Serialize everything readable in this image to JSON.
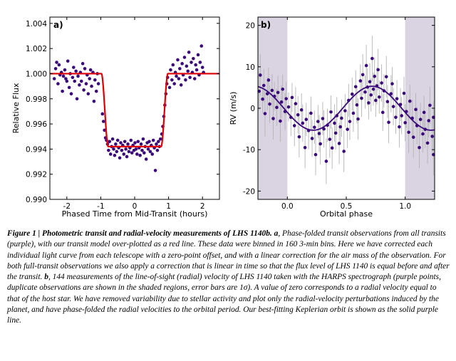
{
  "chart_data": [
    {
      "type": "scatter",
      "panel_label": "a)",
      "xlabel": "Phased Time from Mid-Transit (hours)",
      "ylabel": "Relative Flux",
      "xlim": [
        -2.5,
        2.5
      ],
      "ylim": [
        0.99,
        1.0045
      ],
      "xticks": [
        "-2",
        "-1",
        "0",
        "1",
        "2"
      ],
      "yticks": [
        "0.990",
        "0.992",
        "0.994",
        "0.996",
        "0.998",
        "1.000",
        "1.002",
        "1.004"
      ],
      "point_color": "#3b0a7a",
      "model_color": "#dd0000",
      "model": {
        "baseline": 1.0,
        "depth_flux": 0.9942,
        "ingress_start": -0.98,
        "full_start": -0.78,
        "full_end": 0.78,
        "egress_end": 0.98
      },
      "points": [
        [
          -2.37,
          0.9996
        ],
        [
          -2.33,
          1.0004
        ],
        [
          -2.3,
          1.0009
        ],
        [
          -2.26,
          0.9992
        ],
        [
          -2.23,
          1.0007
        ],
        [
          -2.2,
          0.9999
        ],
        [
          -2.16,
          1.0001
        ],
        [
          -2.13,
          0.9986
        ],
        [
          -2.1,
          0.9998
        ],
        [
          -2.06,
          1.0003
        ],
        [
          -2.03,
          0.9996
        ],
        [
          -2.0,
          0.9994
        ],
        [
          -1.97,
          1.001
        ],
        [
          -1.93,
          0.9989
        ],
        [
          -1.9,
          1.0
        ],
        [
          -1.87,
          0.9984
        ],
        [
          -1.83,
          0.9997
        ],
        [
          -1.8,
          1.0005
        ],
        [
          -1.77,
          0.9994
        ],
        [
          -1.73,
          1.0002
        ],
        [
          -1.7,
          0.998
        ],
        [
          -1.67,
          0.9998
        ],
        [
          -1.63,
          0.9991
        ],
        [
          -1.6,
          1.0001
        ],
        [
          -1.57,
          0.9994
        ],
        [
          -1.53,
          1.0008
        ],
        [
          -1.5,
          0.9987
        ],
        [
          -1.47,
          1.0004
        ],
        [
          -1.43,
          0.9992
        ],
        [
          -1.4,
          0.9999
        ],
        [
          -1.37,
          0.9984
        ],
        [
          -1.33,
          0.9996
        ],
        [
          -1.3,
          1.0003
        ],
        [
          -1.27,
          0.999
        ],
        [
          -1.23,
          1.0001
        ],
        [
          -1.2,
          0.9978
        ],
        [
          -1.17,
          0.9995
        ],
        [
          -1.13,
          0.9986
        ],
        [
          -1.1,
          1.0
        ],
        [
          -1.07,
          0.9992
        ],
        [
          -0.95,
          0.9968
        ],
        [
          -0.92,
          0.9962
        ],
        [
          -0.89,
          0.9955
        ],
        [
          -0.86,
          0.9949
        ],
        [
          -0.83,
          0.9947
        ],
        [
          -0.8,
          0.9944
        ],
        [
          -0.77,
          0.9939
        ],
        [
          -0.74,
          0.9946
        ],
        [
          -0.71,
          0.9936
        ],
        [
          -0.68,
          0.9942
        ],
        [
          -0.65,
          0.9948
        ],
        [
          -0.62,
          0.994
        ],
        [
          -0.59,
          0.9935
        ],
        [
          -0.56,
          0.9944
        ],
        [
          -0.53,
          0.9938
        ],
        [
          -0.5,
          0.9947
        ],
        [
          -0.47,
          0.9941
        ],
        [
          -0.44,
          0.9933
        ],
        [
          -0.41,
          0.9945
        ],
        [
          -0.38,
          0.9939
        ],
        [
          -0.35,
          0.9943
        ],
        [
          -0.32,
          0.9936
        ],
        [
          -0.29,
          0.9946
        ],
        [
          -0.26,
          0.994
        ],
        [
          -0.23,
          0.9934
        ],
        [
          -0.2,
          0.9944
        ],
        [
          -0.17,
          0.9938
        ],
        [
          -0.14,
          0.9941
        ],
        [
          -0.11,
          0.9947
        ],
        [
          -0.08,
          0.9937
        ],
        [
          -0.05,
          0.9943
        ],
        [
          -0.02,
          0.9939
        ],
        [
          0.01,
          0.9945
        ],
        [
          0.04,
          0.994
        ],
        [
          0.07,
          0.9936
        ],
        [
          0.1,
          0.9946
        ],
        [
          0.13,
          0.9941
        ],
        [
          0.16,
          0.9935
        ],
        [
          0.19,
          0.9944
        ],
        [
          0.22,
          0.9939
        ],
        [
          0.25,
          0.9948
        ],
        [
          0.28,
          0.9937
        ],
        [
          0.31,
          0.9942
        ],
        [
          0.34,
          0.9932
        ],
        [
          0.37,
          0.9945
        ],
        [
          0.4,
          0.994
        ],
        [
          0.43,
          0.9946
        ],
        [
          0.46,
          0.9938
        ],
        [
          0.49,
          0.9943
        ],
        [
          0.52,
          0.9936
        ],
        [
          0.55,
          0.9947
        ],
        [
          0.58,
          0.9941
        ],
        [
          0.61,
          0.9923
        ],
        [
          0.64,
          0.9944
        ],
        [
          0.67,
          0.9939
        ],
        [
          0.7,
          0.9946
        ],
        [
          0.73,
          0.9942
        ],
        [
          0.76,
          0.9948
        ],
        [
          0.8,
          0.9952
        ],
        [
          0.83,
          0.9958
        ],
        [
          0.86,
          0.9966
        ],
        [
          0.89,
          0.9975
        ],
        [
          0.92,
          0.9984
        ],
        [
          0.95,
          0.9992
        ],
        [
          0.97,
          0.9997
        ],
        [
          1.03,
          0.9989
        ],
        [
          1.06,
          1.0003
        ],
        [
          1.1,
          0.9995
        ],
        [
          1.13,
          1.0007
        ],
        [
          1.17,
          0.9992
        ],
        [
          1.2,
          1.0001
        ],
        [
          1.23,
          0.9998
        ],
        [
          1.27,
          1.0011
        ],
        [
          1.3,
          0.9996
        ],
        [
          1.33,
          1.0004
        ],
        [
          1.37,
          0.9991
        ],
        [
          1.4,
          1.0008
        ],
        [
          1.43,
          0.9999
        ],
        [
          1.47,
          1.0013
        ],
        [
          1.5,
          0.9995
        ],
        [
          1.53,
          1.0006
        ],
        [
          1.57,
          1.0002
        ],
        [
          1.6,
          1.0017
        ],
        [
          1.63,
          0.9997
        ],
        [
          1.67,
          1.0009
        ],
        [
          1.7,
          1.0001
        ],
        [
          1.73,
          1.0012
        ],
        [
          1.77,
          0.9996
        ],
        [
          1.8,
          1.0007
        ],
        [
          1.83,
          1.0003
        ],
        [
          1.87,
          1.0015
        ],
        [
          1.9,
          0.9999
        ],
        [
          1.93,
          1.0009
        ],
        [
          1.97,
          1.0022
        ],
        [
          2.0,
          1.0005
        ],
        [
          2.03,
          1.0001
        ]
      ]
    },
    {
      "type": "scatter",
      "panel_label": "b)",
      "xlabel": "Orbital phase",
      "ylabel": "RV (m/s)",
      "xlim": [
        -0.25,
        1.25
      ],
      "ylim": [
        -22,
        22
      ],
      "xticks": [
        "0.0",
        "0.5",
        "1.0"
      ],
      "yticks": [
        "20",
        "10",
        "0",
        "-10",
        "-20"
      ],
      "shaded_regions": [
        [
          -0.25,
          0.0
        ],
        [
          1.0,
          1.25
        ]
      ],
      "shade_color": "#d9d3e2",
      "point_color": "#3b0a7a",
      "errorbar_color": "#b4b4b4",
      "model": {
        "type": "sinusoid",
        "amplitude": 5.3,
        "phase_of_max": 0.72,
        "color": "#3b0a7a"
      },
      "points": [
        [
          -0.24,
          4.1,
          4.5
        ],
        [
          -0.23,
          8.0,
          5.0
        ],
        [
          -0.21,
          2.2,
          3.5
        ],
        [
          -0.2,
          5.5,
          4.0
        ],
        [
          -0.19,
          -1.3,
          5.5
        ],
        [
          -0.17,
          3.5,
          4.0
        ],
        [
          -0.16,
          6.8,
          3.0
        ],
        [
          -0.15,
          1.0,
          4.5
        ],
        [
          -0.13,
          4.3,
          4.0
        ],
        [
          -0.12,
          -2.5,
          5.0
        ],
        [
          -0.11,
          2.9,
          3.5
        ],
        [
          -0.09,
          0.2,
          4.5
        ],
        [
          -0.08,
          3.8,
          4.0
        ],
        [
          -0.06,
          -3.1,
          5.0
        ],
        [
          -0.05,
          1.5,
          4.0
        ],
        [
          -0.04,
          4.6,
          3.5
        ],
        [
          -0.02,
          -0.8,
          4.5
        ],
        [
          -0.01,
          2.3,
          4.0
        ],
        [
          0.01,
          0.3,
          3.5
        ],
        [
          0.03,
          -2.2,
          4.5
        ],
        [
          0.04,
          2.6,
          3.5
        ],
        [
          0.06,
          -4.2,
          5.0
        ],
        [
          0.07,
          1.1,
          4.0
        ],
        [
          0.09,
          -1.6,
          4.5
        ],
        [
          0.1,
          -6.9,
          5.0
        ],
        [
          0.12,
          -0.4,
          4.0
        ],
        [
          0.13,
          -3.6,
          4.5
        ],
        [
          0.15,
          -9.5,
          5.0
        ],
        [
          0.16,
          -2.7,
          4.0
        ],
        [
          0.18,
          -5.4,
          4.5
        ],
        [
          0.2,
          -1.2,
          4.0
        ],
        [
          0.21,
          -7.3,
          4.5
        ],
        [
          0.23,
          -4.6,
          4.0
        ],
        [
          0.24,
          -11.2,
          5.0
        ],
        [
          0.26,
          -3.2,
          4.0
        ],
        [
          0.27,
          -6.1,
          4.5
        ],
        [
          0.28,
          -8.6,
          5.0
        ],
        [
          0.3,
          -2.5,
          4.0
        ],
        [
          0.31,
          -5.0,
          4.5
        ],
        [
          0.33,
          -12.8,
          5.5
        ],
        [
          0.34,
          -4.1,
          4.0
        ],
        [
          0.36,
          -7.5,
          4.5
        ],
        [
          0.37,
          -0.9,
          4.0
        ],
        [
          0.38,
          -9.6,
          5.0
        ],
        [
          0.4,
          -3.6,
          4.5
        ],
        [
          0.41,
          -6.0,
          4.0
        ],
        [
          0.42,
          -1.8,
          4.5
        ],
        [
          0.44,
          -8.5,
          5.0
        ],
        [
          0.45,
          -4.5,
          4.0
        ],
        [
          0.46,
          -2.4,
          4.5
        ],
        [
          0.48,
          -10.4,
          5.0
        ],
        [
          0.49,
          -0.6,
          4.0
        ],
        [
          0.51,
          -5.1,
          4.5
        ],
        [
          0.52,
          1.9,
          4.0
        ],
        [
          0.53,
          -3.2,
          4.5
        ],
        [
          0.55,
          3.4,
          4.0
        ],
        [
          0.56,
          -1.2,
          4.5
        ],
        [
          0.58,
          5.2,
          4.0
        ],
        [
          0.59,
          0.8,
          4.5
        ],
        [
          0.6,
          -2.6,
          5.0
        ],
        [
          0.62,
          6.6,
          4.0
        ],
        [
          0.63,
          2.4,
          4.5
        ],
        [
          0.64,
          8.1,
          5.0
        ],
        [
          0.66,
          3.9,
          4.0
        ],
        [
          0.67,
          10.3,
          5.0
        ],
        [
          0.68,
          5.1,
          4.5
        ],
        [
          0.69,
          1.3,
          4.0
        ],
        [
          0.7,
          6.4,
          4.5
        ],
        [
          0.71,
          3.2,
          4.0
        ],
        [
          0.72,
          12.0,
          5.5
        ],
        [
          0.73,
          4.6,
          4.0
        ],
        [
          0.74,
          7.7,
          4.5
        ],
        [
          0.75,
          1.9,
          4.0
        ],
        [
          0.76,
          5.4,
          4.5
        ],
        [
          0.77,
          9.3,
          5.0
        ],
        [
          0.78,
          2.7,
          4.0
        ],
        [
          0.8,
          6.1,
          4.5
        ],
        [
          0.81,
          -1.0,
          4.5
        ],
        [
          0.82,
          4.2,
          4.0
        ],
        [
          0.84,
          7.6,
          5.0
        ],
        [
          0.85,
          1.6,
          4.0
        ],
        [
          0.86,
          -3.4,
          5.0
        ],
        [
          0.88,
          3.5,
          4.5
        ],
        [
          0.89,
          5.9,
          4.0
        ],
        [
          0.9,
          0.4,
          4.5
        ],
        [
          0.92,
          -2.2,
          4.0
        ],
        [
          0.93,
          2.3,
          4.5
        ],
        [
          0.95,
          -4.5,
          5.0
        ],
        [
          0.96,
          0.9,
          4.0
        ],
        [
          0.97,
          -1.8,
          4.5
        ],
        [
          0.99,
          3.6,
          4.0
        ],
        [
          1.0,
          -3.5,
          4.5
        ],
        [
          1.01,
          -0.8,
          4.0
        ],
        [
          1.03,
          -5.8,
          5.0
        ],
        [
          1.04,
          1.7,
          4.0
        ],
        [
          1.06,
          -2.4,
          4.5
        ],
        [
          1.07,
          -7.0,
          5.0
        ],
        [
          1.09,
          -0.3,
          4.0
        ],
        [
          1.1,
          -4.2,
          4.5
        ],
        [
          1.12,
          -9.5,
          5.0
        ],
        [
          1.13,
          -2.7,
          4.0
        ],
        [
          1.15,
          -6.2,
          4.5
        ],
        [
          1.16,
          -1.0,
          4.0
        ],
        [
          1.17,
          -5.1,
          4.5
        ],
        [
          1.19,
          -8.4,
          5.0
        ],
        [
          1.2,
          -3.0,
          4.0
        ],
        [
          1.21,
          0.7,
          4.5
        ],
        [
          1.23,
          -6.8,
          4.5
        ],
        [
          1.24,
          -11.2,
          5.0
        ],
        [
          1.24,
          -2.2,
          4.0
        ]
      ]
    }
  ],
  "caption": {
    "prefix": "Figure 1 | ",
    "title": "Photometric transit and radial-velocity measurements of LHS 1140b.",
    "label_a": "a",
    "text_a": ", Phase-folded transit observations from all transits (purple), with our transit model over-plotted as a red line. These data were binned in 160 3-min bins. Here we have corrected each individual light curve from each telescope with a zero-point offset, and with a linear correction for the air mass of the observation. For both full-transit observations we also apply a correction that is linear in time so that the flux level of LHS 1140 is equal before and after the transit.",
    "label_b": "b",
    "text_b": ", 144 measurements of the line-of-sight (radial) velocity of LHS 1140 taken with the HARPS spectrograph (purple points, duplicate observations are shown in the shaded regions, error bars are 1σ). A value of zero corresponds to a radial velocity equal to that of the host star. We have removed variability due to stellar activity and plot only the radial-velocity perturbations induced by the planet, and have phase-folded the radial velocities to the orbital period. Our best-fitting Keplerian orbit is shown as the solid purple line."
  }
}
